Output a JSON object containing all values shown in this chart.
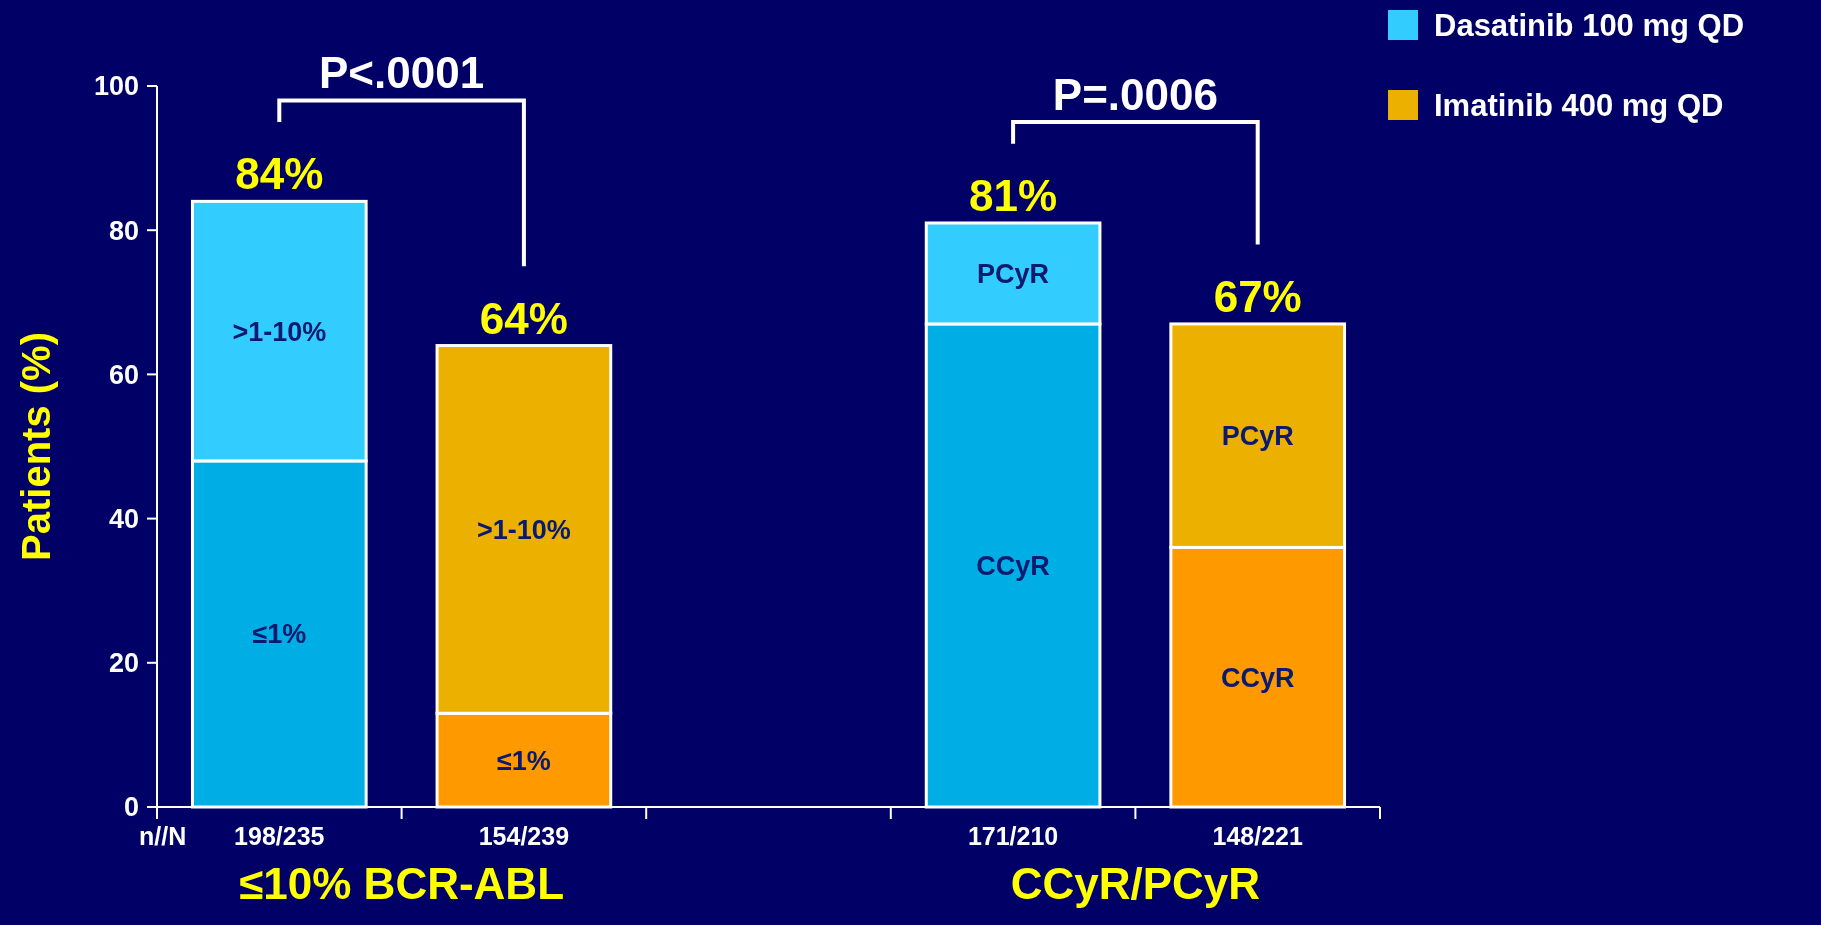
{
  "chart_data": {
    "type": "bar",
    "stacked": true,
    "ylabel": "Patients (%)",
    "categories": [
      "198/235",
      "154/239",
      null,
      "171/210",
      "148/221"
    ],
    "series": [
      {
        "color": "#00aee6",
        "values": [
          48,
          null,
          null,
          67,
          null
        ]
      },
      {
        "name": "Dasatinib 100 mg QD",
        "color": "#33ccff",
        "values": [
          36,
          null,
          null,
          14,
          null
        ]
      },
      {
        "color": "#ff9900",
        "values": [
          null,
          13,
          null,
          null,
          36
        ]
      },
      {
        "name": "Imatinib 400 mg QD",
        "color": "#ecb000",
        "values": [
          null,
          51,
          null,
          null,
          31
        ]
      }
    ],
    "totals": [
      "84%",
      "64%",
      null,
      "81%",
      "67%"
    ],
    "ylim": [
      0,
      100
    ],
    "yticks": [
      0,
      20,
      40,
      60,
      80,
      100
    ],
    "grid": false,
    "legend": "top right",
    "annotations": [
      "P<.0001",
      "P=.0006",
      "n//N",
      "≤10% BCR-ABL",
      "CCyR/PCyR",
      "≤1%",
      "CCyR",
      ">1-10%",
      "PCyR",
      "≤1%",
      "CCyR",
      ">1-10%",
      "PCyR"
    ]
  }
}
